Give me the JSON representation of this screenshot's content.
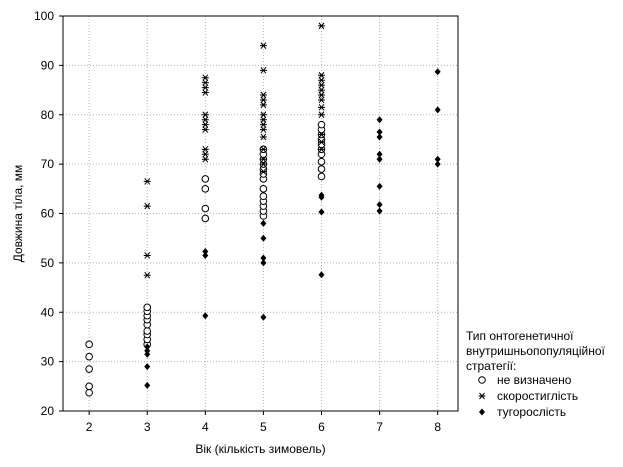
{
  "chart_data": {
    "type": "scatter",
    "title": "",
    "xlabel": "Вік (кількість зимовель)",
    "ylabel": "Довжина тіла, мм",
    "xlim": [
      1.55,
      8.35
    ],
    "ylim": [
      20,
      100
    ],
    "xticks": [
      2,
      3,
      4,
      5,
      6,
      7,
      8
    ],
    "yticks": [
      20,
      30,
      40,
      50,
      60,
      70,
      80,
      90,
      100
    ],
    "grid": true,
    "legend": {
      "placement": "bottom-right, outside plot",
      "title_lines": [
        "Тип онтогенетичної",
        "внутришньопопуляційної",
        "стратегії:"
      ]
    },
    "series": [
      {
        "name": "не визначено",
        "marker": "open-circle",
        "points": [
          [
            2,
            23.7
          ],
          [
            2,
            25
          ],
          [
            2,
            28.5
          ],
          [
            2,
            31
          ],
          [
            2,
            33.5
          ],
          [
            3,
            33.5
          ],
          [
            3,
            34.5
          ],
          [
            3,
            35.5
          ],
          [
            3,
            36.2
          ],
          [
            3,
            37.5
          ],
          [
            3,
            38.5
          ],
          [
            3,
            39.3
          ],
          [
            3,
            40.2
          ],
          [
            3,
            41
          ],
          [
            4,
            59
          ],
          [
            4,
            61
          ],
          [
            4,
            65
          ],
          [
            4,
            67
          ],
          [
            5,
            59.5
          ],
          [
            5,
            60.5
          ],
          [
            5,
            61.5
          ],
          [
            5,
            62.5
          ],
          [
            5,
            63.5
          ],
          [
            5,
            65
          ],
          [
            5,
            67
          ],
          [
            5,
            68
          ],
          [
            5,
            69
          ],
          [
            5,
            70
          ],
          [
            5,
            71
          ],
          [
            5,
            72
          ],
          [
            5,
            73
          ],
          [
            6,
            67.5
          ],
          [
            6,
            69
          ],
          [
            6,
            70.5
          ],
          [
            6,
            72
          ],
          [
            6,
            73
          ],
          [
            6,
            74
          ],
          [
            6,
            75
          ],
          [
            6,
            76
          ],
          [
            6,
            77
          ],
          [
            6,
            78
          ]
        ]
      },
      {
        "name": "скоростиглість",
        "marker": "asterisk",
        "points": [
          [
            3,
            47.5
          ],
          [
            3,
            51.5
          ],
          [
            3,
            61.5
          ],
          [
            3,
            66.5
          ],
          [
            4,
            71
          ],
          [
            4,
            72
          ],
          [
            4,
            73
          ],
          [
            4,
            77
          ],
          [
            4,
            78
          ],
          [
            4,
            79
          ],
          [
            4,
            80
          ],
          [
            4,
            84.5
          ],
          [
            4,
            85.5
          ],
          [
            4,
            86.5
          ],
          [
            4,
            87.5
          ],
          [
            5,
            68.5
          ],
          [
            5,
            70
          ],
          [
            5,
            71
          ],
          [
            5,
            73
          ],
          [
            5,
            75.5
          ],
          [
            5,
            77
          ],
          [
            5,
            78
          ],
          [
            5,
            79
          ],
          [
            5,
            80
          ],
          [
            5,
            82
          ],
          [
            5,
            83
          ],
          [
            5,
            84
          ],
          [
            5,
            89
          ],
          [
            5,
            94
          ],
          [
            6,
            73
          ],
          [
            6,
            74.5
          ],
          [
            6,
            76
          ],
          [
            6,
            80
          ],
          [
            6,
            81.5
          ],
          [
            6,
            83
          ],
          [
            6,
            84
          ],
          [
            6,
            85
          ],
          [
            6,
            86
          ],
          [
            6,
            87
          ],
          [
            6,
            88
          ],
          [
            6,
            98
          ]
        ]
      },
      {
        "name": "тугорослість",
        "marker": "filled-diamond",
        "points": [
          [
            3,
            25.2
          ],
          [
            3,
            29
          ],
          [
            3,
            31.5
          ],
          [
            3,
            32.2
          ],
          [
            3,
            33
          ],
          [
            4,
            39.3
          ],
          [
            4,
            51.5
          ],
          [
            4,
            52.3
          ],
          [
            5,
            39
          ],
          [
            5,
            50
          ],
          [
            5,
            51
          ],
          [
            5,
            55
          ],
          [
            5,
            58
          ],
          [
            6,
            47.6
          ],
          [
            6,
            60.3
          ],
          [
            6,
            63.3
          ],
          [
            6,
            63.7
          ],
          [
            7,
            60.5
          ],
          [
            7,
            61.8
          ],
          [
            7,
            65.5
          ],
          [
            7,
            71
          ],
          [
            7,
            72
          ],
          [
            7,
            75.5
          ],
          [
            7,
            76.5
          ],
          [
            7,
            79
          ],
          [
            8,
            70
          ],
          [
            8,
            71
          ],
          [
            8,
            81
          ],
          [
            8,
            88.7
          ]
        ]
      }
    ]
  }
}
